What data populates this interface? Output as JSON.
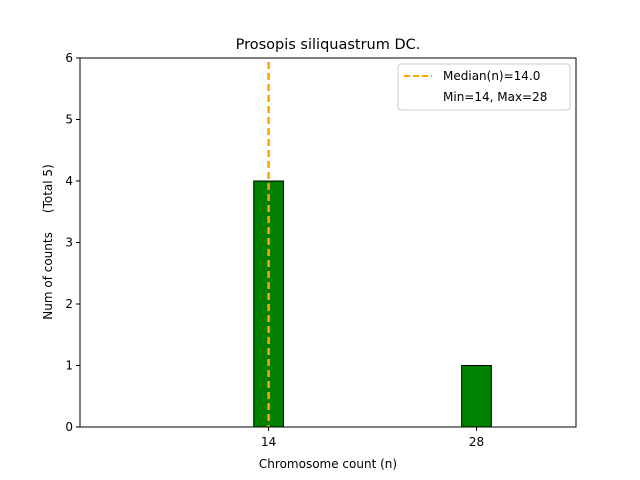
{
  "chart_data": {
    "type": "bar",
    "title": "Prosopis siliquastrum DC.",
    "xlabel": "Chromosome count (n)",
    "ylabel": "Num of counts     (Total 5)",
    "x": [
      14,
      28
    ],
    "values": [
      4,
      1
    ],
    "xticks": [
      "14",
      "28"
    ],
    "yticks": [
      "0",
      "1",
      "2",
      "3",
      "4",
      "5",
      "6"
    ],
    "xlim": [
      1.3,
      34.7
    ],
    "ylim": [
      0,
      6
    ],
    "bar_color": "#008000",
    "bar_edge_color": "#000000",
    "median": 14.0,
    "median_color": "#ffa500",
    "legend": {
      "placement": "top-right",
      "entries": [
        "Median(n)=14.0",
        "Min=14, Max=28"
      ]
    },
    "grid": false
  }
}
